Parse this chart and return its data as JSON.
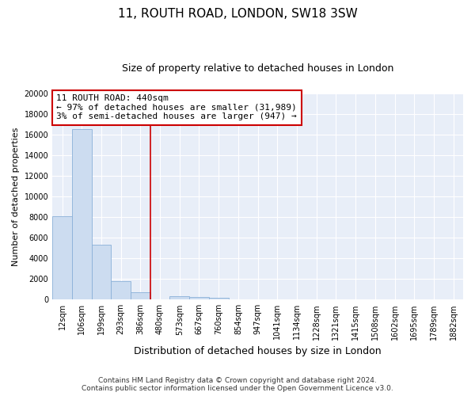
{
  "title": "11, ROUTH ROAD, LONDON, SW18 3SW",
  "subtitle": "Size of property relative to detached houses in London",
  "xlabel": "Distribution of detached houses by size in London",
  "ylabel": "Number of detached properties",
  "categories": [
    "12sqm",
    "106sqm",
    "199sqm",
    "293sqm",
    "386sqm",
    "480sqm",
    "573sqm",
    "667sqm",
    "760sqm",
    "854sqm",
    "947sqm",
    "1041sqm",
    "1134sqm",
    "1228sqm",
    "1321sqm",
    "1415sqm",
    "1508sqm",
    "1602sqm",
    "1695sqm",
    "1789sqm",
    "1882sqm"
  ],
  "values": [
    8100,
    16500,
    5300,
    1800,
    750,
    0,
    350,
    250,
    200,
    0,
    0,
    0,
    0,
    0,
    0,
    0,
    0,
    0,
    0,
    0,
    0
  ],
  "bar_color": "#ccdcf0",
  "bar_edge_color": "#8ab0d8",
  "annotation_title": "11 ROUTH ROAD: 440sqm",
  "annotation_line1": "← 97% of detached houses are smaller (31,989)",
  "annotation_line2": "3% of semi-detached houses are larger (947) →",
  "annotation_box_color": "#ffffff",
  "annotation_box_edge_color": "#cc0000",
  "red_line_color": "#cc0000",
  "ylim": [
    0,
    20000
  ],
  "yticks": [
    0,
    2000,
    4000,
    6000,
    8000,
    10000,
    12000,
    14000,
    16000,
    18000,
    20000
  ],
  "footer_line1": "Contains HM Land Registry data © Crown copyright and database right 2024.",
  "footer_line2": "Contains public sector information licensed under the Open Government Licence v3.0.",
  "plot_bg_color": "#e8eef8",
  "fig_bg_color": "#ffffff",
  "grid_color": "#ffffff",
  "title_fontsize": 11,
  "subtitle_fontsize": 9,
  "ylabel_fontsize": 8,
  "xlabel_fontsize": 9,
  "tick_fontsize": 7,
  "footer_fontsize": 6.5,
  "annotation_fontsize": 8,
  "red_line_index": 5
}
